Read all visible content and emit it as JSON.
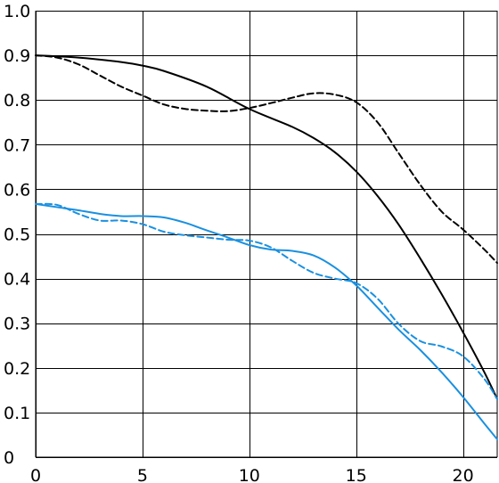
{
  "chart_data": {
    "type": "line",
    "title": "",
    "xlabel": "",
    "ylabel": "",
    "xlim": [
      0,
      21.6
    ],
    "ylim": [
      0,
      1.0
    ],
    "grid": true,
    "x_ticks": [
      0,
      5,
      10,
      15,
      20
    ],
    "x_tick_labels": [
      "0",
      "5",
      "10",
      "15",
      "20"
    ],
    "y_ticks": [
      0,
      0.1,
      0.2,
      0.3,
      0.4,
      0.5,
      0.6,
      0.7,
      0.8,
      0.9,
      1.0
    ],
    "y_tick_labels": [
      "0",
      "0.1",
      "0.2",
      "0.3",
      "0.4",
      "0.5",
      "0.6",
      "0.7",
      "0.8",
      "0.9",
      "1.0"
    ],
    "series": [
      {
        "color": "#000000",
        "dash": "solid",
        "x": [
          0,
          2,
          4,
          5,
          6,
          8,
          10,
          12,
          13,
          14,
          15,
          16,
          17,
          18,
          19,
          20,
          21,
          21.6
        ],
        "y": [
          0.9,
          0.895,
          0.885,
          0.877,
          0.865,
          0.83,
          0.78,
          0.74,
          0.715,
          0.683,
          0.64,
          0.585,
          0.52,
          0.445,
          0.365,
          0.28,
          0.19,
          0.13
        ]
      },
      {
        "color": "#000000",
        "dash": "dashed",
        "x": [
          0,
          1,
          2,
          3,
          4,
          5,
          6,
          7,
          8,
          9,
          10,
          11,
          12,
          13,
          14,
          15,
          16,
          17,
          18,
          19,
          20,
          21,
          21.6
        ],
        "y": [
          0.9,
          0.895,
          0.88,
          0.855,
          0.83,
          0.81,
          0.79,
          0.78,
          0.776,
          0.775,
          0.782,
          0.793,
          0.805,
          0.815,
          0.812,
          0.795,
          0.75,
          0.68,
          0.61,
          0.55,
          0.51,
          0.465,
          0.435
        ]
      },
      {
        "color": "#1a90e0",
        "dash": "solid",
        "x": [
          0,
          1,
          2,
          3,
          4,
          5,
          6,
          7,
          8,
          9,
          10,
          11,
          12,
          13,
          14,
          15,
          16,
          17,
          18,
          19,
          20,
          21,
          21.6
        ],
        "y": [
          0.567,
          0.56,
          0.553,
          0.545,
          0.54,
          0.54,
          0.537,
          0.525,
          0.508,
          0.492,
          0.475,
          0.465,
          0.462,
          0.452,
          0.425,
          0.385,
          0.335,
          0.285,
          0.24,
          0.19,
          0.135,
          0.075,
          0.04
        ]
      },
      {
        "color": "#1a90e0",
        "dash": "dashed",
        "x": [
          0,
          1,
          2,
          3,
          4,
          5,
          6,
          7,
          8,
          9,
          10,
          11,
          12,
          13,
          14,
          15,
          16,
          17,
          18,
          19,
          20,
          21,
          21.6
        ],
        "y": [
          0.567,
          0.565,
          0.545,
          0.53,
          0.53,
          0.522,
          0.505,
          0.497,
          0.492,
          0.487,
          0.485,
          0.47,
          0.44,
          0.413,
          0.4,
          0.39,
          0.355,
          0.298,
          0.26,
          0.248,
          0.226,
          0.175,
          0.13
        ]
      }
    ]
  }
}
